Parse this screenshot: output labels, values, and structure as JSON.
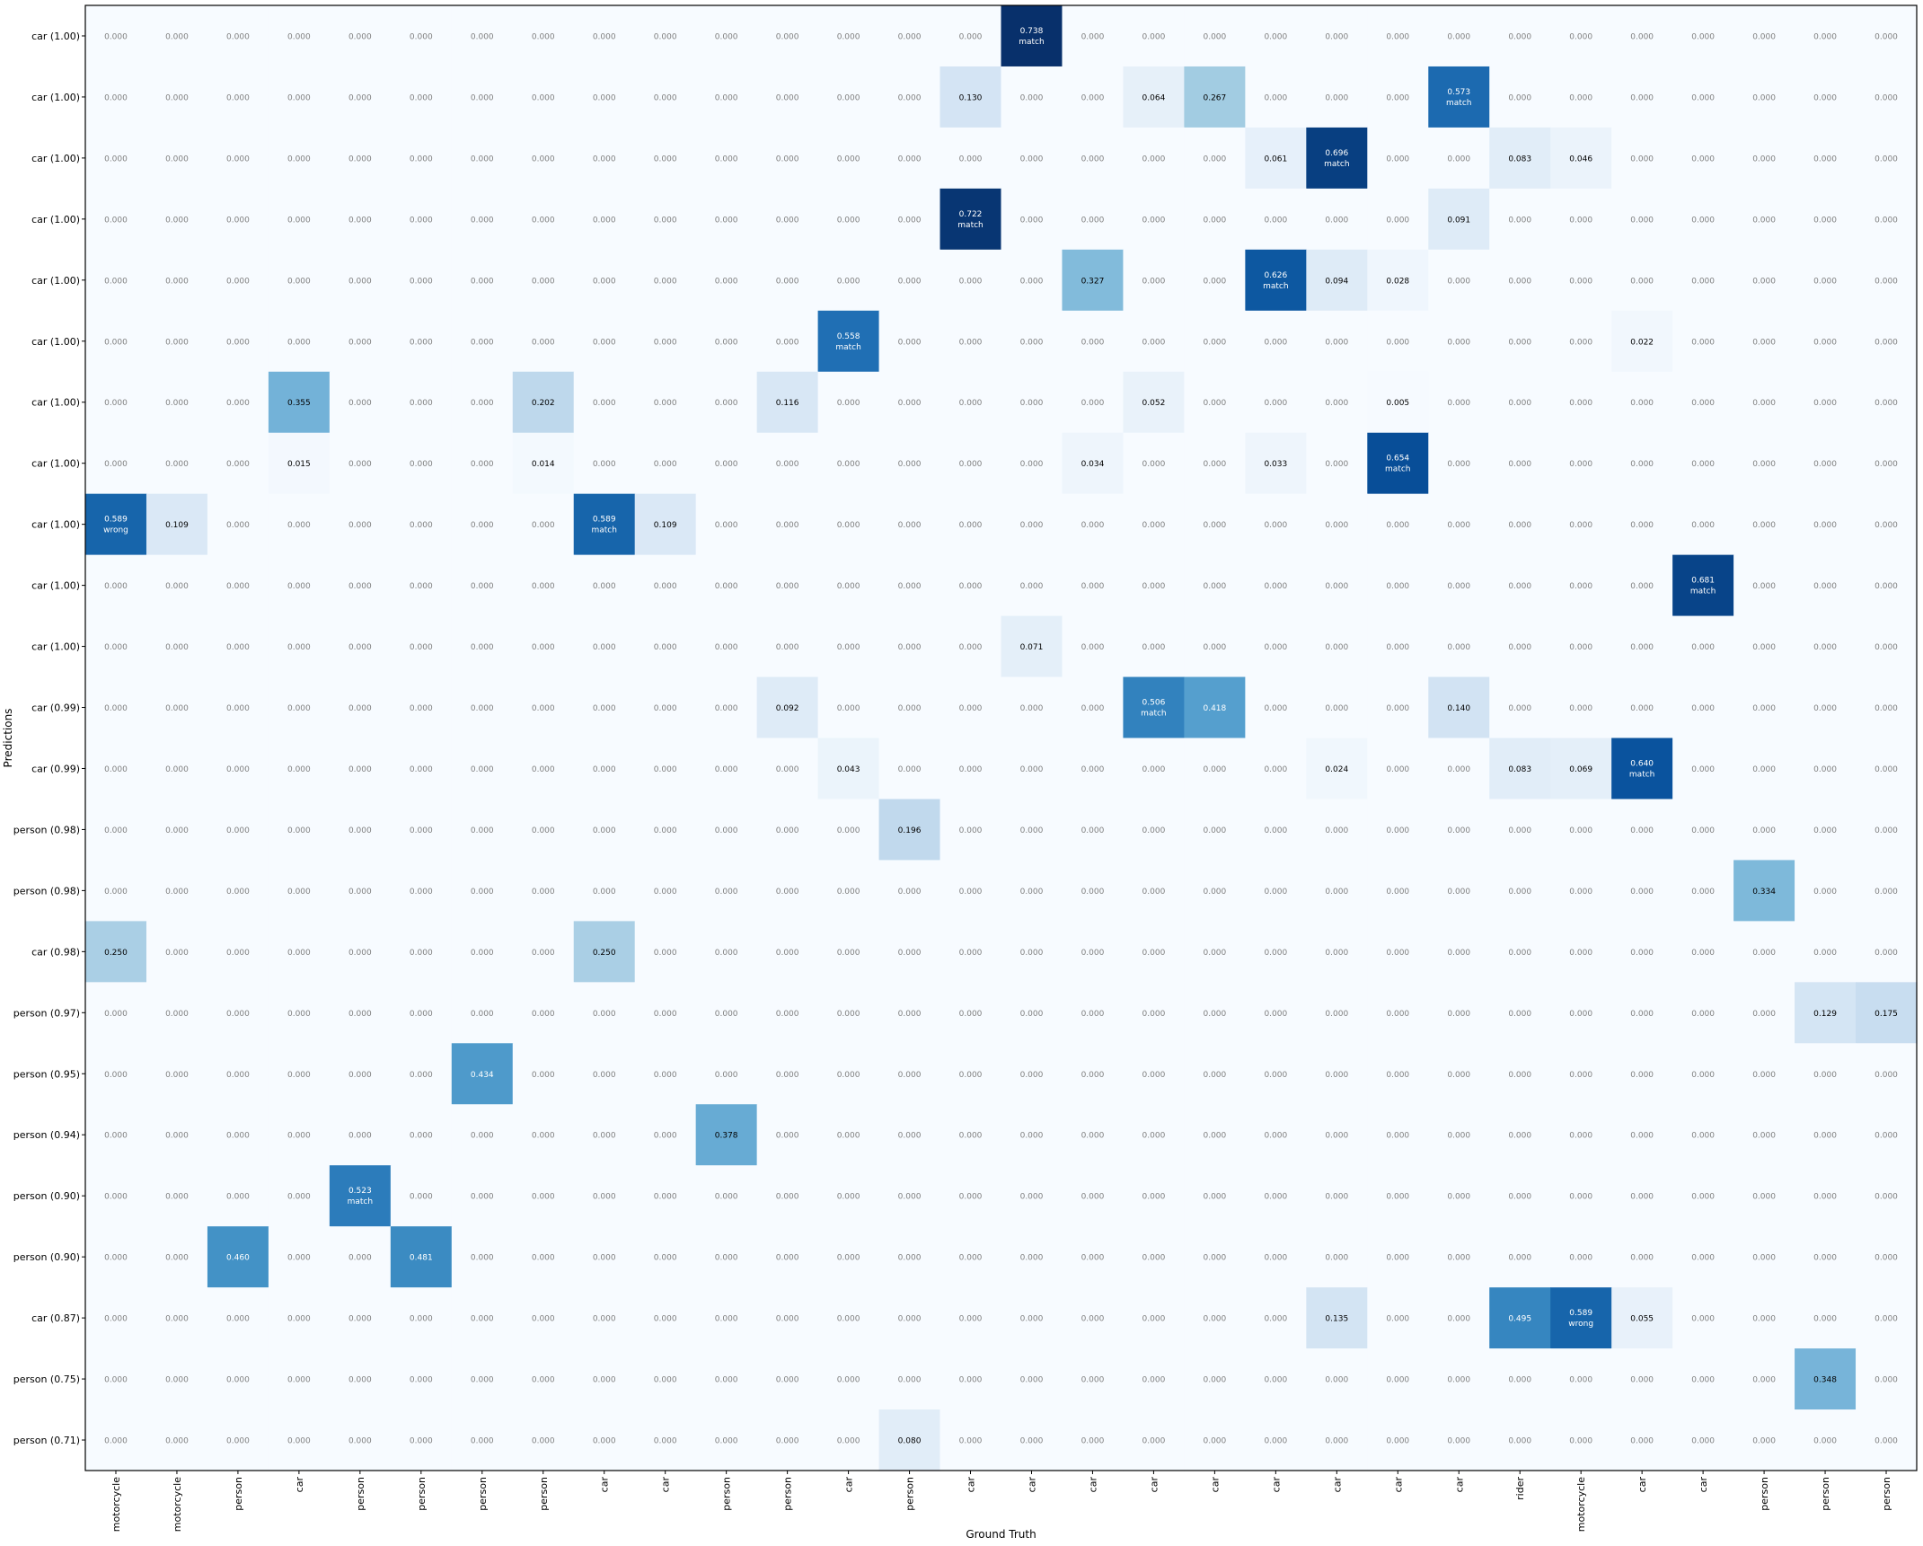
{
  "chart_data": {
    "type": "heatmap",
    "title": "",
    "xlabel": "Ground Truth",
    "ylabel": "Predictions",
    "colormap": {
      "low": "#f7fbff",
      "high": "#08306b",
      "vmin": 0,
      "vmax": 0.738
    },
    "x_categories": [
      "motorcycle",
      "motorcycle",
      "person",
      "car",
      "person",
      "person",
      "person",
      "person",
      "car",
      "car",
      "person",
      "person",
      "car",
      "person",
      "car",
      "car",
      "car",
      "car",
      "car",
      "car",
      "car",
      "car",
      "car",
      "rider",
      "motorcycle",
      "car",
      "car",
      "person",
      "person",
      "person"
    ],
    "y_categories": [
      "car (1.00)",
      "car (1.00)",
      "car (1.00)",
      "car (1.00)",
      "car (1.00)",
      "car (1.00)",
      "car (1.00)",
      "car (1.00)",
      "car (1.00)",
      "car (1.00)",
      "car (1.00)",
      "car (0.99)",
      "car (0.99)",
      "person (0.98)",
      "person (0.98)",
      "car (0.98)",
      "person (0.97)",
      "person (0.95)",
      "person (0.94)",
      "person (0.90)",
      "person (0.90)",
      "car (0.87)",
      "person (0.75)",
      "person (0.71)"
    ],
    "cells": [
      {
        "row": 0,
        "col": 15,
        "value": 0.738,
        "note": "match"
      },
      {
        "row": 1,
        "col": 14,
        "value": 0.13
      },
      {
        "row": 1,
        "col": 17,
        "value": 0.064
      },
      {
        "row": 1,
        "col": 18,
        "value": 0.267
      },
      {
        "row": 1,
        "col": 22,
        "value": 0.573,
        "note": "match"
      },
      {
        "row": 2,
        "col": 19,
        "value": 0.061
      },
      {
        "row": 2,
        "col": 20,
        "value": 0.696,
        "note": "match"
      },
      {
        "row": 2,
        "col": 23,
        "value": 0.083
      },
      {
        "row": 2,
        "col": 24,
        "value": 0.046
      },
      {
        "row": 3,
        "col": 14,
        "value": 0.722,
        "note": "match"
      },
      {
        "row": 3,
        "col": 22,
        "value": 0.091
      },
      {
        "row": 4,
        "col": 16,
        "value": 0.327
      },
      {
        "row": 4,
        "col": 19,
        "value": 0.626,
        "note": "match"
      },
      {
        "row": 4,
        "col": 20,
        "value": 0.094
      },
      {
        "row": 4,
        "col": 21,
        "value": 0.028
      },
      {
        "row": 5,
        "col": 12,
        "value": 0.558,
        "note": "match"
      },
      {
        "row": 5,
        "col": 25,
        "value": 0.022
      },
      {
        "row": 6,
        "col": 3,
        "value": 0.355
      },
      {
        "row": 6,
        "col": 7,
        "value": 0.202
      },
      {
        "row": 6,
        "col": 11,
        "value": 0.116
      },
      {
        "row": 6,
        "col": 17,
        "value": 0.052
      },
      {
        "row": 6,
        "col": 21,
        "value": 0.005
      },
      {
        "row": 7,
        "col": 3,
        "value": 0.015
      },
      {
        "row": 7,
        "col": 7,
        "value": 0.014
      },
      {
        "row": 7,
        "col": 16,
        "value": 0.034
      },
      {
        "row": 7,
        "col": 19,
        "value": 0.033
      },
      {
        "row": 7,
        "col": 21,
        "value": 0.654,
        "note": "match"
      },
      {
        "row": 8,
        "col": 0,
        "value": 0.589,
        "note": "wrong"
      },
      {
        "row": 8,
        "col": 1,
        "value": 0.109
      },
      {
        "row": 8,
        "col": 8,
        "value": 0.589,
        "note": "match"
      },
      {
        "row": 8,
        "col": 9,
        "value": 0.109
      },
      {
        "row": 9,
        "col": 26,
        "value": 0.681,
        "note": "match"
      },
      {
        "row": 10,
        "col": 15,
        "value": 0.071
      },
      {
        "row": 11,
        "col": 11,
        "value": 0.092
      },
      {
        "row": 11,
        "col": 17,
        "value": 0.506,
        "note": "match"
      },
      {
        "row": 11,
        "col": 18,
        "value": 0.418
      },
      {
        "row": 11,
        "col": 22,
        "value": 0.14
      },
      {
        "row": 12,
        "col": 12,
        "value": 0.043
      },
      {
        "row": 12,
        "col": 20,
        "value": 0.024
      },
      {
        "row": 12,
        "col": 23,
        "value": 0.083
      },
      {
        "row": 12,
        "col": 24,
        "value": 0.069
      },
      {
        "row": 12,
        "col": 25,
        "value": 0.64,
        "note": "match"
      },
      {
        "row": 13,
        "col": 13,
        "value": 0.196
      },
      {
        "row": 14,
        "col": 27,
        "value": 0.334
      },
      {
        "row": 15,
        "col": 0,
        "value": 0.25
      },
      {
        "row": 15,
        "col": 8,
        "value": 0.25
      },
      {
        "row": 16,
        "col": 28,
        "value": 0.129
      },
      {
        "row": 16,
        "col": 29,
        "value": 0.175
      },
      {
        "row": 17,
        "col": 6,
        "value": 0.434
      },
      {
        "row": 18,
        "col": 10,
        "value": 0.378
      },
      {
        "row": 19,
        "col": 4,
        "value": 0.523,
        "note": "match"
      },
      {
        "row": 20,
        "col": 2,
        "value": 0.46
      },
      {
        "row": 20,
        "col": 5,
        "value": 0.481
      },
      {
        "row": 21,
        "col": 20,
        "value": 0.135
      },
      {
        "row": 21,
        "col": 23,
        "value": 0.495
      },
      {
        "row": 21,
        "col": 24,
        "value": 0.589,
        "note": "wrong"
      },
      {
        "row": 21,
        "col": 25,
        "value": 0.055
      },
      {
        "row": 22,
        "col": 28,
        "value": 0.348
      },
      {
        "row": 23,
        "col": 13,
        "value": 0.08
      }
    ],
    "default_value": 0.0,
    "grid": false,
    "legend": "none"
  }
}
